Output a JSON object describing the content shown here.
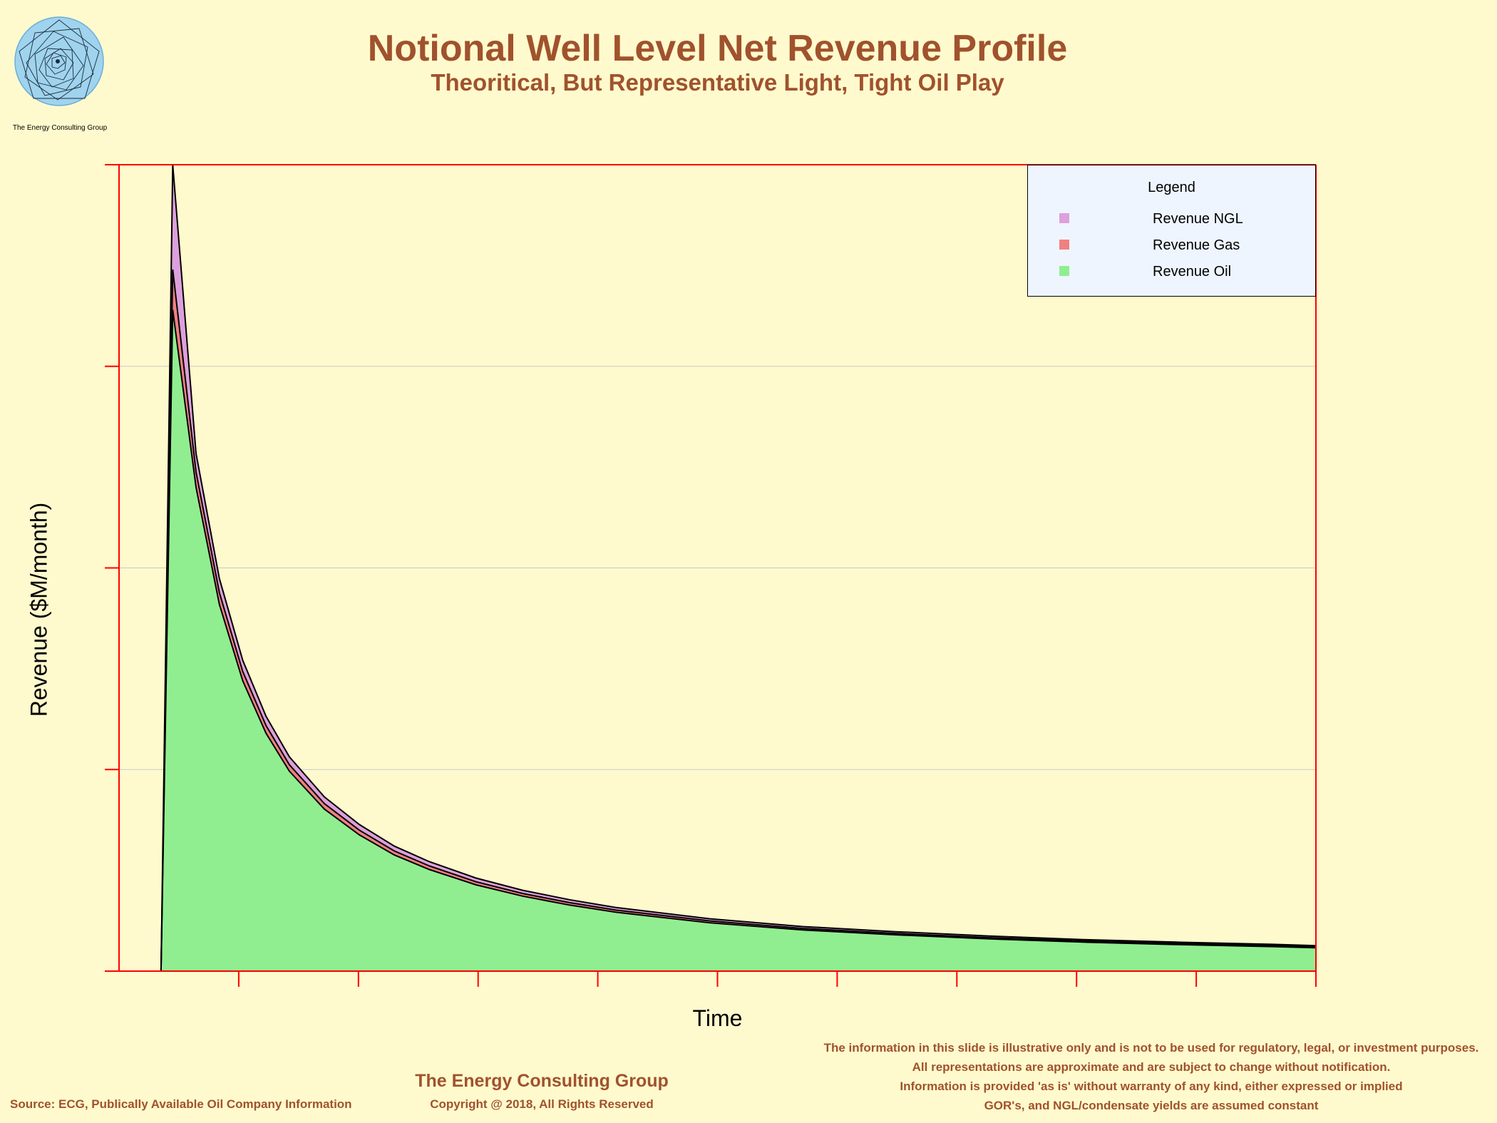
{
  "logo": {
    "icon": "spiral-logo",
    "text": "The Energy Consulting Group"
  },
  "header": {
    "title": "Notional Well Level Net Revenue Profile",
    "subtitle": "Theoritical, But Representative Light, Tight Oil Play"
  },
  "chart_data": {
    "type": "area",
    "stacked": true,
    "title": "Notional Well Level Net Revenue Profile",
    "subtitle": "Theoritical, But Representative Light, Tight Oil Play",
    "xlabel": "Time",
    "ylabel": "Revenue ($M/month)",
    "x_tick_labels": [],
    "y_tick_labels": [],
    "grid": "horizontal",
    "legend_placement": "top-right",
    "legend_title": "Legend",
    "x": [
      0,
      1,
      2,
      4,
      6,
      8,
      10,
      12,
      15,
      18,
      21,
      24,
      28,
      32,
      36,
      40,
      48,
      56,
      64,
      72,
      80,
      88,
      96,
      100
    ],
    "series": [
      {
        "name": "Revenue Oil",
        "color": "#90EE90",
        "values": [
          0,
          0,
          82,
          60,
          45.5,
          36,
          29.5,
          24.8,
          20.1,
          16.9,
          14.4,
          12.6,
          10.7,
          9.3,
          8.2,
          7.3,
          6.0,
          5.1,
          4.5,
          4.0,
          3.6,
          3.3,
          3.05,
          2.9
        ]
      },
      {
        "name": "Revenue Gas",
        "color": "#F08080",
        "values": [
          0,
          0,
          5,
          1.9,
          1.45,
          1.15,
          0.95,
          0.8,
          0.68,
          0.58,
          0.5,
          0.44,
          0.38,
          0.33,
          0.3,
          0.27,
          0.23,
          0.2,
          0.18,
          0.16,
          0.15,
          0.14,
          0.13,
          0.12
        ]
      },
      {
        "name": "Revenue NGL",
        "color": "#DDA0DD",
        "values": [
          0,
          0,
          13,
          2.3,
          1.75,
          1.4,
          1.15,
          0.98,
          0.82,
          0.7,
          0.6,
          0.53,
          0.46,
          0.4,
          0.36,
          0.32,
          0.27,
          0.23,
          0.21,
          0.19,
          0.17,
          0.16,
          0.15,
          0.14
        ]
      }
    ],
    "ylim": [
      0,
      100
    ],
    "xlim": [
      -2.6,
      100
    ]
  },
  "footer": {
    "brand": "The Energy Consulting Group",
    "copyright": "Copyright @ 2018, All Rights Reserved",
    "source": "Source: ECG, Publically Available Oil Company Information",
    "disclaimer": [
      "The information in this slide is illustrative only and is not to be used for regulatory, legal, or investment purposes.",
      "All representations are approximate and are subject to change without notification.",
      "Information is provided 'as is' without warranty of any kind, either expressed or implied",
      "GOR's, and NGL/condensate yields are assumed constant"
    ]
  }
}
